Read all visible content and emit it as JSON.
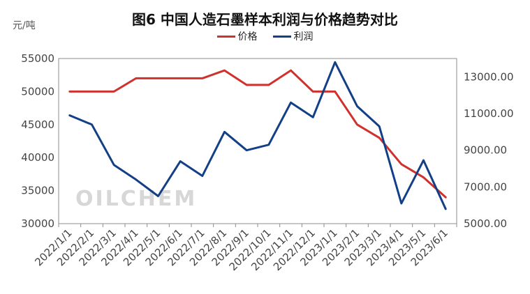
{
  "chart_data": {
    "type": "line",
    "title": "图6 中国人造石墨样本利润与价格趋势对比",
    "y_unit_label": "元/吨",
    "categories": [
      "2022/1/1",
      "2022/2/1",
      "2022/3/1",
      "2022/4/1",
      "2022/5/1",
      "2022/6/1",
      "2022/7/1",
      "2022/8/1",
      "2022/9/1",
      "2022/10/1",
      "2022/11/1",
      "2022/12/1",
      "2023/1/1",
      "2023/2/1",
      "2023/3/1",
      "2023/4/1",
      "2023/5/1",
      "2023/6/1"
    ],
    "series": [
      {
        "name": "价格",
        "axis": "left",
        "color": "#d0312d",
        "values": [
          50000,
          50000,
          50000,
          52000,
          52000,
          52000,
          52000,
          53200,
          51000,
          51000,
          53200,
          50000,
          50000,
          45000,
          43000,
          39000,
          37000,
          34000
        ]
      },
      {
        "name": "利润",
        "axis": "right",
        "color": "#123f86",
        "values": [
          10900,
          10400,
          8200,
          7400,
          6500,
          8400,
          7600,
          10000,
          9000,
          9300,
          11600,
          10800,
          13800,
          11400,
          10300,
          6100,
          8450,
          5800
        ]
      }
    ],
    "y_left": {
      "min": 30000,
      "max": 55000,
      "ticks": [
        30000,
        35000,
        40000,
        45000,
        50000,
        55000
      ]
    },
    "y_right": {
      "min": 5000,
      "max": 14000,
      "ticks": [
        "5000.00",
        "7000.00",
        "9000.00",
        "11000.00",
        "13000.00"
      ]
    },
    "legend_position": "top-center",
    "grid": false
  },
  "watermark": "OILCHEM"
}
